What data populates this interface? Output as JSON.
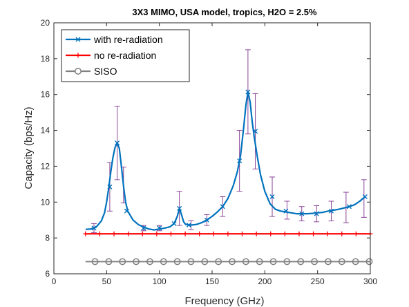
{
  "chart_data": {
    "type": "line",
    "title": "3X3 MIMO, USA model, tropics, H2O = 2.5%",
    "xlabel": "Frequency (GHz)",
    "ylabel": "Capacity (bps/Hz)",
    "xlim": [
      0,
      300
    ],
    "ylim": [
      6,
      20
    ],
    "xticks": [
      "0",
      "50",
      "100",
      "150",
      "200",
      "250",
      "300"
    ],
    "yticks": [
      "6",
      "8",
      "10",
      "12",
      "14",
      "16",
      "18",
      "20"
    ],
    "grid": false,
    "legend_position": "top-left",
    "colors": {
      "with": "#0072BD",
      "no": "#FF0000",
      "siso": "#808080",
      "errorbar": "#7E2F8E"
    },
    "series": [
      {
        "name": "with re-radiation",
        "marker": "x",
        "curve": [
          [
            30,
            8.48
          ],
          [
            35,
            8.5
          ],
          [
            40,
            8.6
          ],
          [
            45,
            8.95
          ],
          [
            48,
            9.4
          ],
          [
            50,
            10.0
          ],
          [
            52,
            10.8
          ],
          [
            54,
            11.7
          ],
          [
            56,
            12.5
          ],
          [
            58,
            13.05
          ],
          [
            60,
            13.3
          ],
          [
            62,
            13.0
          ],
          [
            64,
            12.0
          ],
          [
            66,
            10.9
          ],
          [
            68,
            10.0
          ],
          [
            70,
            9.5
          ],
          [
            75,
            9.0
          ],
          [
            80,
            8.75
          ],
          [
            85,
            8.6
          ],
          [
            90,
            8.5
          ],
          [
            95,
            8.45
          ],
          [
            100,
            8.5
          ],
          [
            105,
            8.55
          ],
          [
            110,
            8.62
          ],
          [
            114,
            8.8
          ],
          [
            117,
            9.2
          ],
          [
            119,
            9.65
          ],
          [
            121,
            9.3
          ],
          [
            123,
            8.9
          ],
          [
            125,
            8.75
          ],
          [
            130,
            8.72
          ],
          [
            135,
            8.75
          ],
          [
            140,
            8.85
          ],
          [
            145,
            9.0
          ],
          [
            150,
            9.2
          ],
          [
            155,
            9.45
          ],
          [
            160,
            9.75
          ],
          [
            165,
            10.2
          ],
          [
            170,
            10.9
          ],
          [
            174,
            11.7
          ],
          [
            177,
            12.6
          ],
          [
            180,
            14.2
          ],
          [
            182,
            15.4
          ],
          [
            184,
            16.15
          ],
          [
            186,
            15.6
          ],
          [
            188,
            14.5
          ],
          [
            190,
            13.6
          ],
          [
            193,
            12.5
          ],
          [
            196,
            11.5
          ],
          [
            200,
            10.6
          ],
          [
            205,
            9.9
          ],
          [
            210,
            9.6
          ],
          [
            215,
            9.5
          ],
          [
            220,
            9.45
          ],
          [
            225,
            9.4
          ],
          [
            230,
            9.35
          ],
          [
            235,
            9.35
          ],
          [
            240,
            9.35
          ],
          [
            245,
            9.37
          ],
          [
            250,
            9.4
          ],
          [
            255,
            9.43
          ],
          [
            260,
            9.5
          ],
          [
            265,
            9.55
          ],
          [
            270,
            9.6
          ],
          [
            275,
            9.67
          ],
          [
            280,
            9.75
          ],
          [
            285,
            9.85
          ],
          [
            290,
            10.05
          ],
          [
            295,
            10.3
          ]
        ],
        "markers": [
          [
            38,
            8.55
          ],
          [
            53,
            10.85
          ],
          [
            60,
            13.3
          ],
          [
            69,
            9.5
          ],
          [
            85,
            8.55
          ],
          [
            100,
            8.55
          ],
          [
            114,
            8.8
          ],
          [
            119,
            9.65
          ],
          [
            128,
            8.72
          ],
          [
            145,
            9.0
          ],
          [
            160,
            9.75
          ],
          [
            176,
            12.3
          ],
          [
            184,
            16.15
          ],
          [
            191,
            13.95
          ],
          [
            207,
            10.3
          ],
          [
            220,
            9.5
          ],
          [
            235,
            9.35
          ],
          [
            249,
            9.35
          ],
          [
            263,
            9.5
          ],
          [
            280,
            9.75
          ],
          [
            295,
            10.3
          ]
        ],
        "errorbars": [
          [
            38,
            8.55,
            0.25
          ],
          [
            53,
            10.85,
            1.35
          ],
          [
            60,
            13.3,
            2.05
          ],
          [
            66,
            10.95,
            1.0
          ],
          [
            85,
            8.55,
            0.15
          ],
          [
            100,
            8.55,
            0.15
          ],
          [
            119,
            9.65,
            0.95
          ],
          [
            130,
            8.72,
            0.25
          ],
          [
            145,
            9.0,
            0.3
          ],
          [
            160,
            9.75,
            0.55
          ],
          [
            176,
            12.3,
            1.7
          ],
          [
            184,
            16.15,
            2.35
          ],
          [
            191,
            13.95,
            2.1
          ],
          [
            207,
            10.3,
            1.1
          ],
          [
            221,
            9.55,
            0.5
          ],
          [
            235,
            9.35,
            0.4
          ],
          [
            249,
            9.35,
            0.45
          ],
          [
            263,
            9.5,
            0.55
          ],
          [
            277,
            9.7,
            0.85
          ],
          [
            294,
            10.2,
            1.05
          ]
        ]
      },
      {
        "name": "no re-radiation",
        "marker": "+",
        "y": 8.23,
        "x_range": [
          30,
          300
        ],
        "marker_x": [
          30,
          43.5,
          57,
          70.5,
          84,
          97.5,
          111,
          124.5,
          138,
          151.5,
          165,
          178.5,
          192,
          205.5,
          219,
          232.5,
          246,
          259.5,
          273,
          286.5,
          300
        ]
      },
      {
        "name": "SISO",
        "marker": "o",
        "y": 6.68,
        "x_range": [
          30,
          300
        ],
        "marker_x": [
          39,
          52,
          65,
          78,
          91,
          104,
          117,
          130,
          143,
          156,
          169,
          182,
          195,
          208,
          221,
          234,
          247,
          260,
          273,
          286,
          299
        ]
      }
    ]
  }
}
